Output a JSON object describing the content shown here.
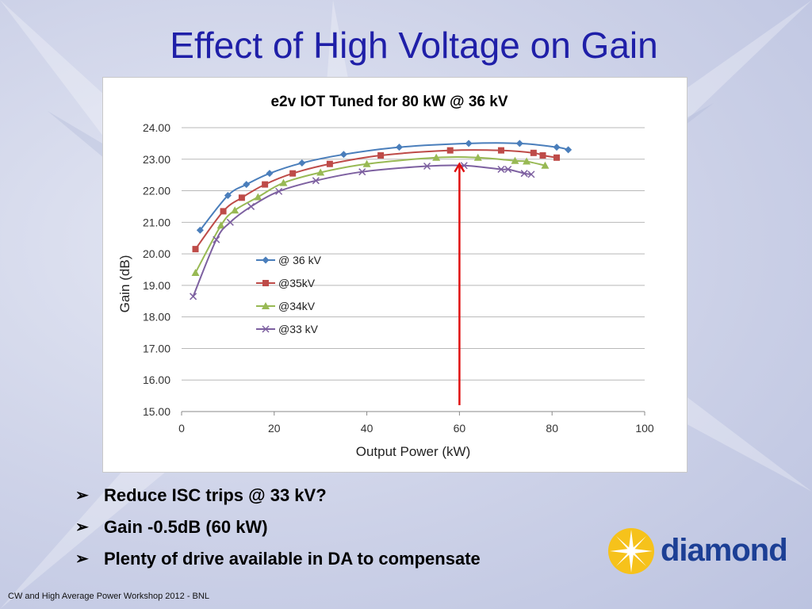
{
  "slide": {
    "title": "Effect of High Voltage on Gain",
    "bullets": [
      "Reduce ISC trips @ 33 kV?",
      "Gain -0.5dB (60 kW)",
      "Plenty of drive available in DA to compensate"
    ],
    "bullet_marker": "➢",
    "footer": "CW and High Average Power Workshop 2012 - BNL",
    "logo_text": "diamond"
  },
  "chart_data": {
    "type": "line",
    "title": "e2v IOT Tuned for 80 kW @ 36 kV",
    "xlabel": "Output Power (kW)",
    "ylabel": "Gain (dB)",
    "xlim": [
      0,
      100
    ],
    "ylim": [
      15,
      24
    ],
    "x_ticks": [
      "0",
      "20",
      "40",
      "60",
      "80",
      "100"
    ],
    "y_ticks": [
      "15.00",
      "16.00",
      "17.00",
      "18.00",
      "19.00",
      "20.00",
      "21.00",
      "22.00",
      "23.00",
      "24.00"
    ],
    "grid": "horizontal",
    "legend_position": "left-middle",
    "annotation": {
      "type": "arrow",
      "x": 60,
      "y_from": 15.2,
      "y_to": 22.85,
      "color": "#e01010"
    },
    "series": [
      {
        "name": "@ 36 kV",
        "color": "#4a7ebb",
        "marker": "diamond",
        "points": [
          [
            4,
            20.75
          ],
          [
            10,
            21.85
          ],
          [
            14,
            22.2
          ],
          [
            19,
            22.55
          ],
          [
            26,
            22.88
          ],
          [
            35,
            23.15
          ],
          [
            47,
            23.38
          ],
          [
            62,
            23.5
          ],
          [
            73,
            23.5
          ],
          [
            81,
            23.38
          ],
          [
            83.5,
            23.3
          ]
        ]
      },
      {
        "name": "@35kV",
        "color": "#be4b48",
        "marker": "square",
        "points": [
          [
            3,
            20.15
          ],
          [
            9,
            21.35
          ],
          [
            13,
            21.78
          ],
          [
            18,
            22.2
          ],
          [
            24,
            22.55
          ],
          [
            32,
            22.85
          ],
          [
            43,
            23.12
          ],
          [
            58,
            23.28
          ],
          [
            69,
            23.28
          ],
          [
            76,
            23.2
          ],
          [
            78,
            23.12
          ],
          [
            81,
            23.05
          ]
        ]
      },
      {
        "name": "@34kV",
        "color": "#98b954",
        "marker": "triangle",
        "points": [
          [
            3,
            19.4
          ],
          [
            8.5,
            20.9
          ],
          [
            11.5,
            21.38
          ],
          [
            16.5,
            21.8
          ],
          [
            22,
            22.25
          ],
          [
            30,
            22.58
          ],
          [
            40,
            22.85
          ],
          [
            55,
            23.05
          ],
          [
            64,
            23.05
          ],
          [
            72,
            22.95
          ],
          [
            74.5,
            22.93
          ],
          [
            78.5,
            22.8
          ]
        ]
      },
      {
        "name": "@33 kV",
        "color": "#7d60a0",
        "marker": "x",
        "points": [
          [
            2.5,
            18.65
          ],
          [
            7.5,
            20.45
          ],
          [
            10.5,
            21.0
          ],
          [
            15,
            21.5
          ],
          [
            21,
            21.98
          ],
          [
            29,
            22.32
          ],
          [
            39,
            22.6
          ],
          [
            53,
            22.78
          ],
          [
            61,
            22.8
          ],
          [
            69,
            22.68
          ],
          [
            70.5,
            22.68
          ],
          [
            74,
            22.55
          ],
          [
            75.5,
            22.52
          ]
        ]
      }
    ]
  }
}
